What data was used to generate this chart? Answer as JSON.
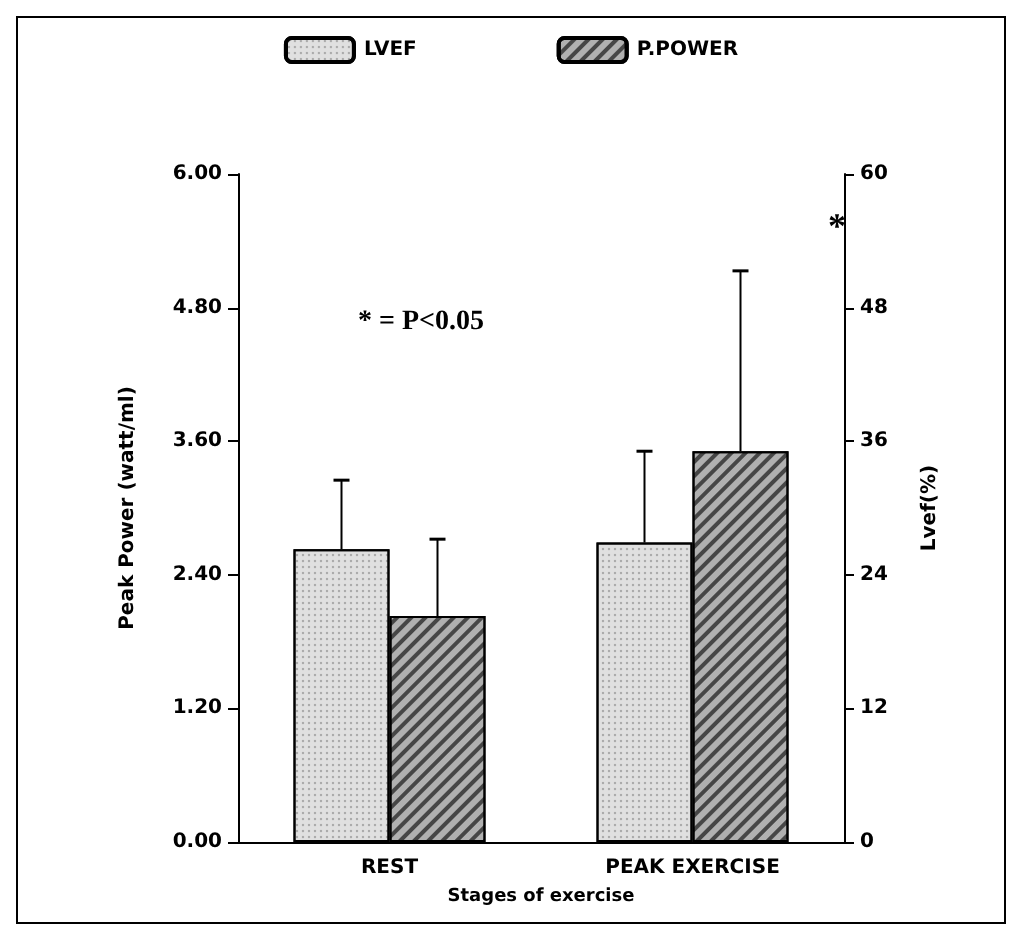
{
  "chart_data": {
    "type": "bar",
    "xlabel": "Stages of exercise",
    "ylabel": "Peak Power (watt/ml)",
    "y2label": "Lvef(%)",
    "categories": [
      "REST",
      "PEAK EXERCISE"
    ],
    "series": [
      {
        "name": "LVEF",
        "color": "#e0e0e0",
        "axis": "y2",
        "values": [
          26.3,
          26.9
        ],
        "errors": [
          [
            26.3,
            32.5
          ],
          [
            26.9,
            35.1
          ]
        ]
      },
      {
        "name": "P.POWER",
        "color": "#b0b0b0",
        "values": [
          2.03,
          3.51
        ],
        "errors": [
          [
            2.03,
            2.72
          ],
          [
            3.51,
            5.13
          ]
        ]
      }
    ],
    "ylim": [
      0,
      6
    ],
    "yticks": [
      {
        "value": 0,
        "label": "0.00"
      },
      {
        "value": 1.2,
        "label": "1.20"
      },
      {
        "value": 2.4,
        "label": "2.40"
      },
      {
        "value": 3.6,
        "label": "3.60"
      },
      {
        "value": 4.8,
        "label": "4.80"
      },
      {
        "value": 6,
        "label": "6.00"
      }
    ],
    "y2lim": [
      0,
      60
    ],
    "y2ticks": [
      0,
      12,
      24,
      36,
      48,
      60
    ],
    "annotations": [
      "* = P<0.05",
      "*"
    ],
    "legend": "top",
    "grid": false
  }
}
